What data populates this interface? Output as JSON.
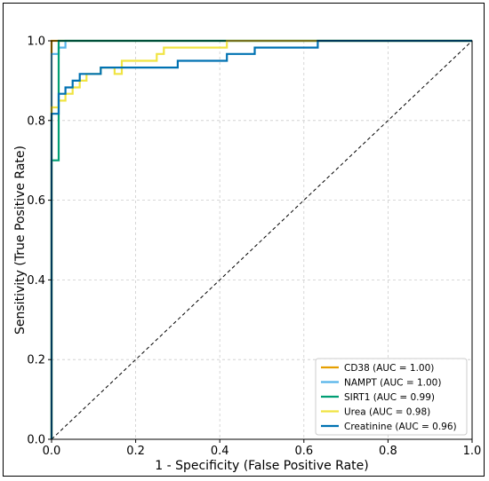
{
  "chart_data": {
    "type": "line",
    "title": "",
    "xlabel": "1 - Specificity (False Positive Rate)",
    "ylabel": "Sensitivity (True Positive Rate)",
    "xlim": [
      0.0,
      1.0
    ],
    "ylim": [
      0.0,
      1.0
    ],
    "xticks": [
      "0.0",
      "0.2",
      "0.4",
      "0.6",
      "0.8",
      "1.0"
    ],
    "yticks": [
      "0.0",
      "0.2",
      "0.4",
      "0.6",
      "0.8",
      "1.0"
    ],
    "grid": true,
    "legend_position": "bottom-right",
    "diagonal": {
      "x": [
        0,
        1
      ],
      "y": [
        0,
        1
      ],
      "style": "dashed",
      "color": "#000000"
    },
    "series": [
      {
        "name": "CD38 (AUC = 1.00)",
        "color": "#E69F00",
        "x": [
          0,
          0,
          1
        ],
        "y": [
          0,
          1,
          1
        ]
      },
      {
        "name": "NAMPT (AUC = 1.00)",
        "color": "#56B4E9",
        "x": [
          0,
          0,
          0.017,
          0.017,
          0.033,
          0.033,
          1
        ],
        "y": [
          0,
          0.967,
          0.967,
          0.983,
          0.983,
          1,
          1
        ]
      },
      {
        "name": "SIRT1 (AUC = 0.99)",
        "color": "#009E73",
        "x": [
          0,
          0,
          0.017,
          0.017,
          1
        ],
        "y": [
          0,
          0.7,
          0.7,
          1,
          1
        ]
      },
      {
        "name": "Urea (AUC = 0.98)",
        "color": "#F0E442",
        "x": [
          0,
          0,
          0.017,
          0.017,
          0.033,
          0.033,
          0.05,
          0.05,
          0.067,
          0.067,
          0.083,
          0.083,
          0.117,
          0.117,
          0.15,
          0.15,
          0.167,
          0.167,
          0.25,
          0.25,
          0.267,
          0.267,
          0.3,
          0.3,
          0.417,
          0.417,
          0.6,
          0.6,
          1
        ],
        "y": [
          0,
          0.833,
          0.833,
          0.85,
          0.85,
          0.867,
          0.867,
          0.883,
          0.883,
          0.9,
          0.9,
          0.917,
          0.917,
          0.933,
          0.933,
          0.917,
          0.917,
          0.95,
          0.95,
          0.967,
          0.967,
          0.983,
          0.983,
          0.983,
          0.983,
          1,
          1,
          1,
          1
        ]
      },
      {
        "name": "Creatinine (AUC = 0.96)",
        "color": "#0072B2",
        "x": [
          0,
          0,
          0.017,
          0.017,
          0.033,
          0.033,
          0.05,
          0.05,
          0.067,
          0.067,
          0.117,
          0.117,
          0.3,
          0.3,
          0.417,
          0.417,
          0.483,
          0.483,
          0.567,
          0.567,
          0.633,
          0.633,
          1
        ],
        "y": [
          0,
          0.817,
          0.817,
          0.867,
          0.867,
          0.883,
          0.883,
          0.9,
          0.9,
          0.917,
          0.917,
          0.933,
          0.933,
          0.95,
          0.95,
          0.967,
          0.967,
          0.983,
          0.983,
          0.983,
          0.983,
          1,
          1
        ]
      }
    ]
  }
}
